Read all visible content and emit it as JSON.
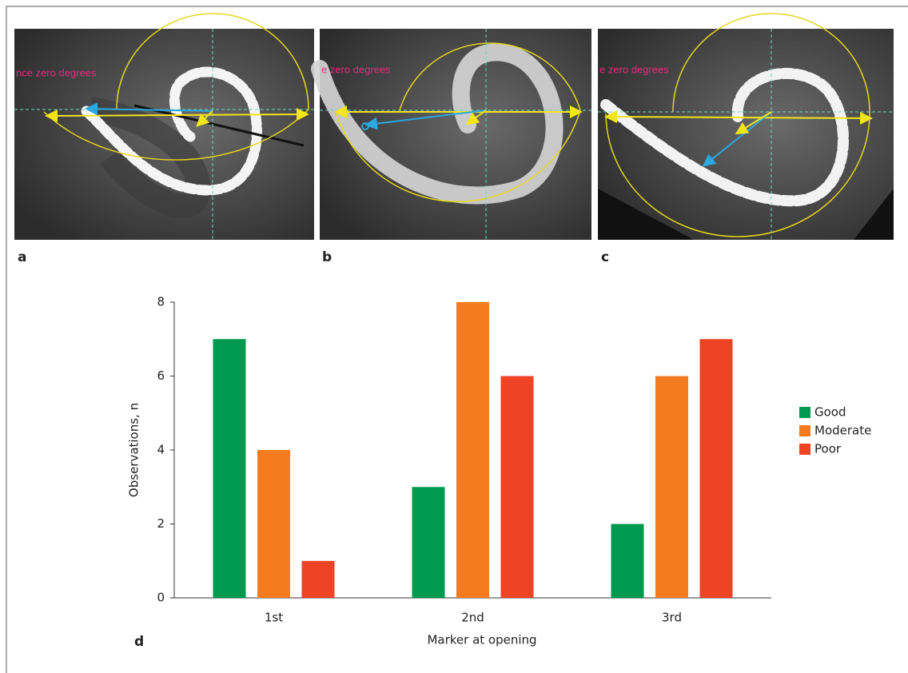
{
  "panels": [
    {
      "label": "a",
      "annotation": "nce zero degrees"
    },
    {
      "label": "b",
      "annotation": "e zero degrees"
    },
    {
      "label": "c",
      "annotation": "e zero degrees"
    }
  ],
  "chart_data": {
    "type": "bar",
    "panel_label": "d",
    "xlabel": "Marker at opening",
    "ylabel": "Observations, n",
    "categories": [
      "1st",
      "2nd",
      "3rd"
    ],
    "series": [
      {
        "name": "Good",
        "color": "#009a4e",
        "values": [
          7,
          3,
          2
        ]
      },
      {
        "name": "Moderate",
        "color": "#f47b20",
        "values": [
          4,
          8,
          6
        ]
      },
      {
        "name": "Poor",
        "color": "#ee4324",
        "values": [
          1,
          6,
          7
        ]
      }
    ],
    "ylim": [
      0,
      8
    ],
    "yticks": [
      0,
      2,
      4,
      6,
      8
    ],
    "grid": false,
    "legend": "right"
  }
}
